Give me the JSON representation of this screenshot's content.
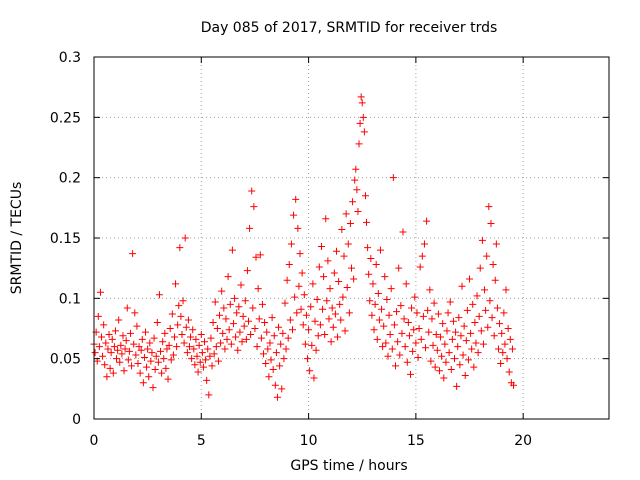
{
  "chart_data": {
    "type": "scatter",
    "title": "Day 085 of 2017, SRMTID for receiver trds",
    "xlabel": "GPS time / hours",
    "ylabel": "SRMTID / TECUs",
    "xlim": [
      0,
      24
    ],
    "ylim": [
      0,
      0.3
    ],
    "grid": true,
    "marker_color": "#ff0000",
    "marker": "plus",
    "x_ticks": [
      {
        "value": 0,
        "label": "0"
      },
      {
        "value": 5,
        "label": "5"
      },
      {
        "value": 10,
        "label": "10"
      },
      {
        "value": 15,
        "label": "15"
      },
      {
        "value": 20,
        "label": "20"
      }
    ],
    "y_ticks": [
      {
        "value": 0,
        "label": "0"
      },
      {
        "value": 0.05,
        "label": "0.05"
      },
      {
        "value": 0.1,
        "label": "0.1"
      },
      {
        "value": 0.15,
        "label": "0.15"
      },
      {
        "value": 0.2,
        "label": "0.2"
      },
      {
        "value": 0.25,
        "label": "0.25"
      },
      {
        "value": 0.3,
        "label": "0.3"
      }
    ],
    "points": [
      [
        0.0,
        0.062
      ],
      [
        0.05,
        0.055
      ],
      [
        0.1,
        0.072
      ],
      [
        0.15,
        0.048
      ],
      [
        0.2,
        0.085
      ],
      [
        0.25,
        0.06
      ],
      [
        0.3,
        0.105
      ],
      [
        0.35,
        0.068
      ],
      [
        0.4,
        0.052
      ],
      [
        0.45,
        0.078
      ],
      [
        0.5,
        0.045
      ],
      [
        0.55,
        0.063
      ],
      [
        0.6,
        0.035
      ],
      [
        0.65,
        0.058
      ],
      [
        0.7,
        0.07
      ],
      [
        0.75,
        0.042
      ],
      [
        0.8,
        0.055
      ],
      [
        0.85,
        0.066
      ],
      [
        0.9,
        0.038
      ],
      [
        0.95,
        0.06
      ],
      [
        1.0,
        0.073
      ],
      [
        1.05,
        0.05
      ],
      [
        1.1,
        0.057
      ],
      [
        1.15,
        0.082
      ],
      [
        1.2,
        0.047
      ],
      [
        1.25,
        0.061
      ],
      [
        1.3,
        0.054
      ],
      [
        1.35,
        0.069
      ],
      [
        1.4,
        0.04
      ],
      [
        1.45,
        0.058
      ],
      [
        1.5,
        0.065
      ],
      [
        1.55,
        0.092
      ],
      [
        1.6,
        0.049
      ],
      [
        1.65,
        0.056
      ],
      [
        1.7,
        0.071
      ],
      [
        1.75,
        0.044
      ],
      [
        1.8,
        0.137
      ],
      [
        1.85,
        0.062
      ],
      [
        1.9,
        0.088
      ],
      [
        1.95,
        0.053
      ],
      [
        2.0,
        0.077
      ],
      [
        2.05,
        0.046
      ],
      [
        2.1,
        0.06
      ],
      [
        2.15,
        0.038
      ],
      [
        2.2,
        0.057
      ],
      [
        2.25,
        0.066
      ],
      [
        2.3,
        0.03
      ],
      [
        2.35,
        0.051
      ],
      [
        2.4,
        0.072
      ],
      [
        2.45,
        0.043
      ],
      [
        2.5,
        0.058
      ],
      [
        2.55,
        0.035
      ],
      [
        2.6,
        0.063
      ],
      [
        2.65,
        0.048
      ],
      [
        2.7,
        0.055
      ],
      [
        2.75,
        0.026
      ],
      [
        2.8,
        0.067
      ],
      [
        2.85,
        0.041
      ],
      [
        2.9,
        0.052
      ],
      [
        2.95,
        0.08
      ],
      [
        3.0,
        0.047
      ],
      [
        3.05,
        0.103
      ],
      [
        3.1,
        0.056
      ],
      [
        3.15,
        0.038
      ],
      [
        3.2,
        0.064
      ],
      [
        3.25,
        0.05
      ],
      [
        3.3,
        0.071
      ],
      [
        3.35,
        0.042
      ],
      [
        3.4,
        0.058
      ],
      [
        3.45,
        0.033
      ],
      [
        3.5,
        0.061
      ],
      [
        3.55,
        0.075
      ],
      [
        3.6,
        0.049
      ],
      [
        3.65,
        0.087
      ],
      [
        3.7,
        0.053
      ],
      [
        3.75,
        0.068
      ],
      [
        3.8,
        0.112
      ],
      [
        3.85,
        0.06
      ],
      [
        3.9,
        0.078
      ],
      [
        3.95,
        0.094
      ],
      [
        4.0,
        0.142
      ],
      [
        4.05,
        0.085
      ],
      [
        4.1,
        0.07
      ],
      [
        4.15,
        0.098
      ],
      [
        4.2,
        0.063
      ],
      [
        4.25,
        0.15
      ],
      [
        4.3,
        0.076
      ],
      [
        4.35,
        0.055
      ],
      [
        4.4,
        0.082
      ],
      [
        4.45,
        0.06
      ],
      [
        4.5,
        0.068
      ],
      [
        4.55,
        0.05
      ],
      [
        4.6,
        0.074
      ],
      [
        4.65,
        0.058
      ],
      [
        4.7,
        0.045
      ],
      [
        4.75,
        0.066
      ],
      [
        4.8,
        0.052
      ],
      [
        4.85,
        0.039
      ],
      [
        4.9,
        0.061
      ],
      [
        4.95,
        0.047
      ],
      [
        5.0,
        0.07
      ],
      [
        5.05,
        0.055
      ],
      [
        5.1,
        0.043
      ],
      [
        5.15,
        0.064
      ],
      [
        5.2,
        0.049
      ],
      [
        5.25,
        0.032
      ],
      [
        5.3,
        0.058
      ],
      [
        5.35,
        0.02
      ],
      [
        5.4,
        0.052
      ],
      [
        5.45,
        0.067
      ],
      [
        5.5,
        0.044
      ],
      [
        5.55,
        0.08
      ],
      [
        5.6,
        0.054
      ],
      [
        5.65,
        0.097
      ],
      [
        5.7,
        0.06
      ],
      [
        5.75,
        0.075
      ],
      [
        5.8,
        0.048
      ],
      [
        5.85,
        0.086
      ],
      [
        5.9,
        0.063
      ],
      [
        5.95,
        0.106
      ],
      [
        6.0,
        0.071
      ],
      [
        6.05,
        0.092
      ],
      [
        6.1,
        0.058
      ],
      [
        6.15,
        0.083
      ],
      [
        6.2,
        0.066
      ],
      [
        6.25,
        0.118
      ],
      [
        6.3,
        0.074
      ],
      [
        6.35,
        0.095
      ],
      [
        6.4,
        0.062
      ],
      [
        6.45,
        0.14
      ],
      [
        6.5,
        0.079
      ],
      [
        6.55,
        0.1
      ],
      [
        6.6,
        0.068
      ],
      [
        6.65,
        0.088
      ],
      [
        6.7,
        0.057
      ],
      [
        6.75,
        0.093
      ],
      [
        6.8,
        0.072
      ],
      [
        6.85,
        0.111
      ],
      [
        6.9,
        0.064
      ],
      [
        6.95,
        0.085
      ],
      [
        7.0,
        0.077
      ],
      [
        7.05,
        0.098
      ],
      [
        7.1,
        0.066
      ],
      [
        7.15,
        0.123
      ],
      [
        7.2,
        0.081
      ],
      [
        7.25,
        0.158
      ],
      [
        7.3,
        0.07
      ],
      [
        7.35,
        0.189
      ],
      [
        7.4,
        0.092
      ],
      [
        7.45,
        0.176
      ],
      [
        7.5,
        0.075
      ],
      [
        7.55,
        0.134
      ],
      [
        7.6,
        0.06
      ],
      [
        7.65,
        0.108
      ],
      [
        7.7,
        0.083
      ],
      [
        7.75,
        0.136
      ],
      [
        7.8,
        0.067
      ],
      [
        7.85,
        0.095
      ],
      [
        7.9,
        0.054
      ],
      [
        7.95,
        0.08
      ],
      [
        8.0,
        0.046
      ],
      [
        8.05,
        0.072
      ],
      [
        8.1,
        0.058
      ],
      [
        8.15,
        0.035
      ],
      [
        8.2,
        0.063
      ],
      [
        8.25,
        0.049
      ],
      [
        8.3,
        0.084
      ],
      [
        8.35,
        0.041
      ],
      [
        8.4,
        0.069
      ],
      [
        8.45,
        0.028
      ],
      [
        8.5,
        0.055
      ],
      [
        8.55,
        0.018
      ],
      [
        8.6,
        0.076
      ],
      [
        8.65,
        0.044
      ],
      [
        8.7,
        0.062
      ],
      [
        8.75,
        0.025
      ],
      [
        8.8,
        0.071
      ],
      [
        8.85,
        0.05
      ],
      [
        8.9,
        0.096
      ],
      [
        8.95,
        0.058
      ],
      [
        9.0,
        0.115
      ],
      [
        9.05,
        0.067
      ],
      [
        9.1,
        0.128
      ],
      [
        9.15,
        0.082
      ],
      [
        9.2,
        0.145
      ],
      [
        9.25,
        0.074
      ],
      [
        9.3,
        0.169
      ],
      [
        9.35,
        0.101
      ],
      [
        9.4,
        0.182
      ],
      [
        9.45,
        0.088
      ],
      [
        9.5,
        0.158
      ],
      [
        9.55,
        0.11
      ],
      [
        9.6,
        0.137
      ],
      [
        9.65,
        0.091
      ],
      [
        9.7,
        0.121
      ],
      [
        9.75,
        0.078
      ],
      [
        9.8,
        0.103
      ],
      [
        9.85,
        0.062
      ],
      [
        9.9,
        0.086
      ],
      [
        9.95,
        0.05
      ],
      [
        10.0,
        0.074
      ],
      [
        10.05,
        0.04
      ],
      [
        10.1,
        0.093
      ],
      [
        10.15,
        0.061
      ],
      [
        10.2,
        0.112
      ],
      [
        10.25,
        0.034
      ],
      [
        10.3,
        0.081
      ],
      [
        10.35,
        0.057
      ],
      [
        10.4,
        0.099
      ],
      [
        10.45,
        0.069
      ],
      [
        10.5,
        0.126
      ],
      [
        10.55,
        0.078
      ],
      [
        10.6,
        0.143
      ],
      [
        10.65,
        0.091
      ],
      [
        10.7,
        0.118
      ],
      [
        10.75,
        0.07
      ],
      [
        10.8,
        0.166
      ],
      [
        10.85,
        0.098
      ],
      [
        10.9,
        0.131
      ],
      [
        10.95,
        0.083
      ],
      [
        11.0,
        0.108
      ],
      [
        11.05,
        0.064
      ],
      [
        11.1,
        0.092
      ],
      [
        11.15,
        0.076
      ],
      [
        11.2,
        0.121
      ],
      [
        11.25,
        0.087
      ],
      [
        11.3,
        0.139
      ],
      [
        11.35,
        0.068
      ],
      [
        11.4,
        0.114
      ],
      [
        11.45,
        0.095
      ],
      [
        11.5,
        0.082
      ],
      [
        11.55,
        0.157
      ],
      [
        11.6,
        0.101
      ],
      [
        11.65,
        0.135
      ],
      [
        11.7,
        0.073
      ],
      [
        11.75,
        0.17
      ],
      [
        11.8,
        0.109
      ],
      [
        11.85,
        0.145
      ],
      [
        11.9,
        0.088
      ],
      [
        11.95,
        0.162
      ],
      [
        12.0,
        0.125
      ],
      [
        12.05,
        0.18
      ],
      [
        12.1,
        0.116
      ],
      [
        12.15,
        0.198
      ],
      [
        12.2,
        0.207
      ],
      [
        12.25,
        0.19
      ],
      [
        12.3,
        0.172
      ],
      [
        12.35,
        0.228
      ],
      [
        12.4,
        0.245
      ],
      [
        12.45,
        0.267
      ],
      [
        12.5,
        0.262
      ],
      [
        12.55,
        0.25
      ],
      [
        12.6,
        0.238
      ],
      [
        12.65,
        0.185
      ],
      [
        12.7,
        0.163
      ],
      [
        12.75,
        0.142
      ],
      [
        12.8,
        0.12
      ],
      [
        12.85,
        0.098
      ],
      [
        12.9,
        0.133
      ],
      [
        12.95,
        0.086
      ],
      [
        13.0,
        0.112
      ],
      [
        13.05,
        0.074
      ],
      [
        13.1,
        0.095
      ],
      [
        13.15,
        0.128
      ],
      [
        13.2,
        0.066
      ],
      [
        13.25,
        0.104
      ],
      [
        13.3,
        0.082
      ],
      [
        13.35,
        0.14
      ],
      [
        13.4,
        0.091
      ],
      [
        13.45,
        0.06
      ],
      [
        13.5,
        0.077
      ],
      [
        13.55,
        0.118
      ],
      [
        13.6,
        0.063
      ],
      [
        13.65,
        0.099
      ],
      [
        13.7,
        0.052
      ],
      [
        13.75,
        0.086
      ],
      [
        13.8,
        0.07
      ],
      [
        13.85,
        0.108
      ],
      [
        13.9,
        0.058
      ],
      [
        13.95,
        0.2
      ],
      [
        14.0,
        0.078
      ],
      [
        14.05,
        0.044
      ],
      [
        14.1,
        0.089
      ],
      [
        14.15,
        0.064
      ],
      [
        14.2,
        0.125
      ],
      [
        14.25,
        0.053
      ],
      [
        14.3,
        0.094
      ],
      [
        14.35,
        0.071
      ],
      [
        14.4,
        0.155
      ],
      [
        14.45,
        0.083
      ],
      [
        14.5,
        0.06
      ],
      [
        14.55,
        0.112
      ],
      [
        14.6,
        0.047
      ],
      [
        14.65,
        0.08
      ],
      [
        14.7,
        0.069
      ],
      [
        14.75,
        0.037
      ],
      [
        14.8,
        0.092
      ],
      [
        14.85,
        0.056
      ],
      [
        14.9,
        0.074
      ],
      [
        14.95,
        0.101
      ],
      [
        15.0,
        0.063
      ],
      [
        15.05,
        0.088
      ],
      [
        15.1,
        0.051
      ],
      [
        15.15,
        0.075
      ],
      [
        15.2,
        0.126
      ],
      [
        15.25,
        0.066
      ],
      [
        15.3,
        0.135
      ],
      [
        15.35,
        0.085
      ],
      [
        15.4,
        0.145
      ],
      [
        15.45,
        0.059
      ],
      [
        15.5,
        0.164
      ],
      [
        15.55,
        0.09
      ],
      [
        15.6,
        0.072
      ],
      [
        15.65,
        0.107
      ],
      [
        15.7,
        0.048
      ],
      [
        15.75,
        0.083
      ],
      [
        15.8,
        0.061
      ],
      [
        15.85,
        0.096
      ],
      [
        15.9,
        0.043
      ],
      [
        15.95,
        0.07
      ],
      [
        16.0,
        0.057
      ],
      [
        16.05,
        0.087
      ],
      [
        16.1,
        0.04
      ],
      [
        16.15,
        0.068
      ],
      [
        16.2,
        0.052
      ],
      [
        16.25,
        0.079
      ],
      [
        16.3,
        0.034
      ],
      [
        16.35,
        0.062
      ],
      [
        16.4,
        0.047
      ],
      [
        16.45,
        0.073
      ],
      [
        16.5,
        0.088
      ],
      [
        16.55,
        0.055
      ],
      [
        16.6,
        0.097
      ],
      [
        16.65,
        0.041
      ],
      [
        16.7,
        0.066
      ],
      [
        16.75,
        0.081
      ],
      [
        16.8,
        0.05
      ],
      [
        16.85,
        0.072
      ],
      [
        16.9,
        0.027
      ],
      [
        16.95,
        0.06
      ],
      [
        17.0,
        0.084
      ],
      [
        17.05,
        0.045
      ],
      [
        17.1,
        0.069
      ],
      [
        17.15,
        0.11
      ],
      [
        17.2,
        0.053
      ],
      [
        17.25,
        0.077
      ],
      [
        17.3,
        0.036
      ],
      [
        17.35,
        0.065
      ],
      [
        17.4,
        0.09
      ],
      [
        17.45,
        0.049
      ],
      [
        17.5,
        0.116
      ],
      [
        17.55,
        0.071
      ],
      [
        17.6,
        0.058
      ],
      [
        17.65,
        0.095
      ],
      [
        17.7,
        0.043
      ],
      [
        17.75,
        0.08
      ],
      [
        17.8,
        0.063
      ],
      [
        17.85,
        0.102
      ],
      [
        17.9,
        0.055
      ],
      [
        17.95,
        0.085
      ],
      [
        18.0,
        0.125
      ],
      [
        18.05,
        0.073
      ],
      [
        18.1,
        0.148
      ],
      [
        18.15,
        0.062
      ],
      [
        18.2,
        0.107
      ],
      [
        18.25,
        0.09
      ],
      [
        18.3,
        0.135
      ],
      [
        18.35,
        0.076
      ],
      [
        18.4,
        0.176
      ],
      [
        18.45,
        0.098
      ],
      [
        18.5,
        0.162
      ],
      [
        18.55,
        0.084
      ],
      [
        18.6,
        0.128
      ],
      [
        18.65,
        0.069
      ],
      [
        18.7,
        0.115
      ],
      [
        18.75,
        0.145
      ],
      [
        18.8,
        0.092
      ],
      [
        18.85,
        0.058
      ],
      [
        18.9,
        0.079
      ],
      [
        18.95,
        0.046
      ],
      [
        19.0,
        0.071
      ],
      [
        19.05,
        0.055
      ],
      [
        19.1,
        0.088
      ],
      [
        19.15,
        0.062
      ],
      [
        19.2,
        0.107
      ],
      [
        19.25,
        0.05
      ],
      [
        19.3,
        0.075
      ],
      [
        19.35,
        0.039
      ],
      [
        19.4,
        0.066
      ],
      [
        19.45,
        0.03
      ],
      [
        19.5,
        0.058
      ],
      [
        19.55,
        0.028
      ]
    ]
  }
}
